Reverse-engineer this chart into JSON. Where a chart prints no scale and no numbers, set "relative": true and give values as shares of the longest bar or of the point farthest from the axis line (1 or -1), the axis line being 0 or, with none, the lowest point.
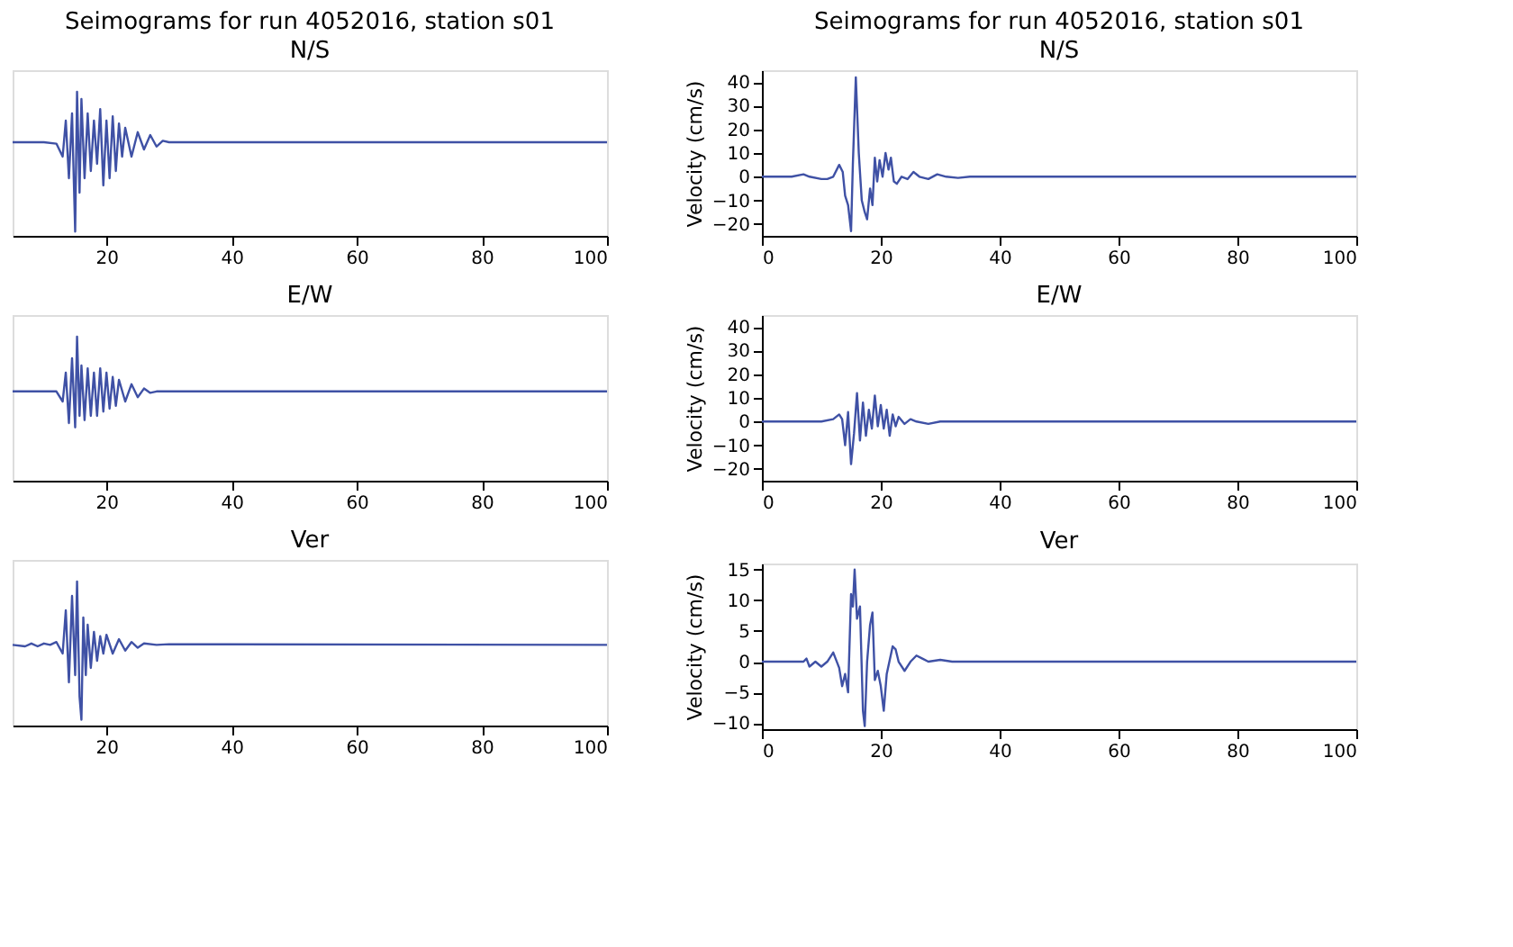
{
  "chart_data": [
    {
      "type": "line",
      "title": "Seimograms for run 4052016, station s01",
      "subtitle": "N/S",
      "relative": true,
      "tick_labels": "x",
      "xlim": [
        5,
        100
      ],
      "xticks": [
        20,
        40,
        60,
        80,
        100
      ],
      "x": [
        5,
        10,
        12,
        13,
        13.5,
        14,
        14.5,
        15,
        15.3,
        15.7,
        16,
        16.5,
        17,
        17.5,
        18,
        18.5,
        19,
        19.5,
        20,
        20.5,
        21,
        21.5,
        22,
        22.5,
        23,
        24,
        25,
        26,
        27,
        28,
        29,
        30,
        100
      ],
      "series": [
        {
          "color": "#3f51a5",
          "values": [
            0.65,
            0.65,
            0.64,
            0.55,
            0.8,
            0.4,
            0.85,
            0.03,
            1,
            0.3,
            0.95,
            0.4,
            0.85,
            0.45,
            0.8,
            0.5,
            0.88,
            0.35,
            0.8,
            0.4,
            0.83,
            0.45,
            0.78,
            0.55,
            0.75,
            0.55,
            0.72,
            0.6,
            0.7,
            0.62,
            0.66,
            0.65,
            0.65
          ]
        }
      ]
    },
    {
      "type": "line",
      "title": "E/W",
      "relative": true,
      "tick_labels": "x",
      "xlim": [
        5,
        100
      ],
      "xticks": [
        20,
        40,
        60,
        80,
        100
      ],
      "x": [
        5,
        12,
        13,
        13.5,
        14,
        14.5,
        15,
        15.3,
        15.7,
        16,
        16.5,
        17,
        17.5,
        18,
        18.5,
        19,
        19.5,
        20,
        20.5,
        21,
        21.5,
        22,
        23,
        24,
        25,
        26,
        27,
        28,
        100
      ],
      "series": [
        {
          "color": "#3f51a5",
          "values": [
            0.62,
            0.62,
            0.55,
            0.75,
            0.4,
            0.85,
            0.37,
            1,
            0.45,
            0.8,
            0.42,
            0.78,
            0.45,
            0.75,
            0.45,
            0.78,
            0.48,
            0.75,
            0.5,
            0.72,
            0.52,
            0.7,
            0.55,
            0.67,
            0.58,
            0.64,
            0.61,
            0.62,
            0.62
          ]
        }
      ]
    },
    {
      "type": "line",
      "title": "Ver",
      "relative": true,
      "tick_labels": "x",
      "xlim": [
        5,
        100
      ],
      "xticks": [
        20,
        40,
        60,
        80,
        100
      ],
      "x": [
        5,
        7,
        8,
        9,
        10,
        11,
        12,
        13,
        13.5,
        14,
        14.5,
        15,
        15.3,
        15.7,
        16,
        16.3,
        16.7,
        17,
        17.5,
        18,
        18.5,
        19,
        19.5,
        20,
        21,
        22,
        23,
        24,
        25,
        26,
        28,
        30,
        100
      ],
      "series": [
        {
          "color": "#3f51a5",
          "values": [
            0.56,
            0.55,
            0.57,
            0.55,
            0.57,
            0.56,
            0.58,
            0.5,
            0.8,
            0.3,
            0.9,
            0.35,
            1,
            0.2,
            0.04,
            0.75,
            0.35,
            0.7,
            0.4,
            0.65,
            0.45,
            0.62,
            0.5,
            0.63,
            0.5,
            0.6,
            0.52,
            0.58,
            0.54,
            0.57,
            0.56,
            0.565,
            0.56
          ]
        }
      ]
    },
    {
      "type": "line",
      "title": "Seimograms for run 4052016, station s01",
      "subtitle": "N/S",
      "ylabel": "Velocity (cm/s)",
      "xlim": [
        0,
        100
      ],
      "xticks": [
        0,
        20,
        40,
        60,
        80,
        100
      ],
      "ylim": [
        -25,
        45
      ],
      "yticks": [
        -20,
        -10,
        0,
        10,
        20,
        30,
        40
      ],
      "x": [
        0,
        5,
        7,
        8,
        10,
        11,
        12,
        13,
        13.6,
        14,
        14.5,
        15,
        15.3,
        15.8,
        16.3,
        16.8,
        17.3,
        17.7,
        18.2,
        18.6,
        19,
        19.4,
        19.8,
        20.3,
        20.8,
        21.3,
        21.7,
        22.2,
        22.7,
        23.5,
        24.5,
        25.5,
        26.5,
        28,
        29.5,
        31,
        33,
        35,
        40,
        100
      ],
      "series": [
        {
          "color": "#3f51a5",
          "values": [
            0,
            0,
            1,
            0,
            -1,
            -1,
            0,
            5,
            2,
            -8,
            -12,
            -23,
            5,
            42,
            10,
            -10,
            -15,
            -18,
            -5,
            -12,
            8,
            -2,
            7,
            0,
            10,
            3,
            8,
            -2,
            -3,
            0,
            -1,
            2,
            0,
            -1,
            1,
            0,
            -0.5,
            0,
            0,
            0
          ]
        }
      ]
    },
    {
      "type": "line",
      "title": "E/W",
      "ylabel": "Velocity (cm/s)",
      "xlim": [
        0,
        100
      ],
      "xticks": [
        0,
        20,
        40,
        60,
        80,
        100
      ],
      "ylim": [
        -25,
        45
      ],
      "yticks": [
        -20,
        -10,
        0,
        10,
        20,
        30,
        40
      ],
      "x": [
        0,
        10,
        12,
        13,
        13.5,
        14,
        14.5,
        15,
        15.5,
        16,
        16.5,
        17,
        17.5,
        18,
        18.5,
        19,
        19.5,
        20,
        20.5,
        21,
        21.5,
        22,
        22.5,
        23,
        24,
        25,
        26,
        28,
        30,
        40,
        100
      ],
      "series": [
        {
          "color": "#3f51a5",
          "values": [
            0,
            0,
            1,
            3,
            1,
            -10,
            4,
            -18,
            -5,
            12,
            -8,
            8,
            -6,
            5,
            -3,
            11,
            -2,
            7,
            -3,
            5,
            -6,
            3,
            -2,
            2,
            -1,
            1,
            0,
            -1,
            0,
            0,
            0
          ]
        }
      ]
    },
    {
      "type": "line",
      "title": "Ver",
      "ylabel": "Velocity (cm/s)",
      "xlim": [
        0,
        100
      ],
      "xticks": [
        0,
        20,
        40,
        60,
        80,
        100
      ],
      "ylim": [
        -11,
        16
      ],
      "yticks": [
        -10,
        -5,
        0,
        5,
        10,
        15
      ],
      "x": [
        0,
        7,
        7.5,
        8,
        9,
        10,
        11,
        12,
        13,
        13.5,
        14,
        14.5,
        15,
        15.3,
        15.6,
        16,
        16.5,
        17,
        17.3,
        17.7,
        18.2,
        18.6,
        19,
        19.5,
        20,
        20.5,
        21,
        22,
        22.5,
        23,
        24,
        25,
        26,
        27,
        28,
        30,
        32,
        40,
        100
      ],
      "series": [
        {
          "color": "#3f51a5",
          "values": [
            0,
            0,
            0.5,
            -0.8,
            0,
            -0.8,
            0,
            1.5,
            -1,
            -4,
            -2,
            -5,
            11,
            9,
            15,
            7,
            9,
            -8,
            -10.5,
            0,
            6,
            8,
            -3,
            -1.5,
            -4,
            -8,
            -2,
            2.5,
            2,
            0,
            -1.5,
            0,
            1,
            0.5,
            0,
            0.3,
            0,
            0,
            0
          ]
        }
      ]
    }
  ]
}
